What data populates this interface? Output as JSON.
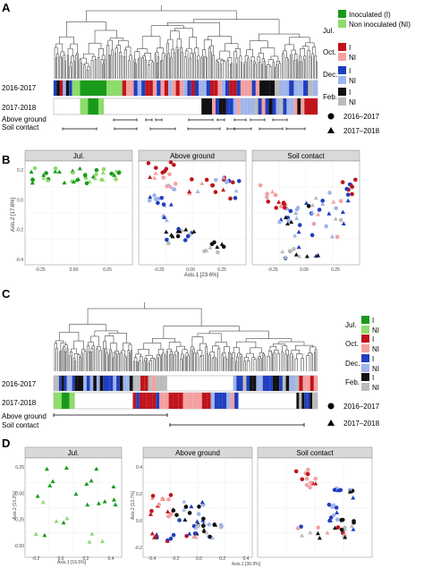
{
  "panels": {
    "A": {
      "label": "A",
      "row_labels": [
        "2016-2017",
        "2017-2018"
      ],
      "bar_labels": [
        "Above ground",
        "Soil contact"
      ],
      "legend": {
        "months": [
          {
            "label": "Jul.",
            "inoc_color": "#1a9a1a",
            "ni_color": "#8ddc6c",
            "inoc_text": "Inoculated (I)",
            "ni_text": "Non inoculated (NI)"
          },
          {
            "label": "Oct.",
            "inoc_color": "#c0141c",
            "ni_color": "#f4a0a0",
            "inoc_text": "I",
            "ni_text": "NI"
          },
          {
            "label": "Dec.",
            "inoc_color": "#1f3fbf",
            "ni_color": "#9fb4ea",
            "inoc_text": "I",
            "ni_text": "NI"
          },
          {
            "label": "Feb.",
            "inoc_color": "#111111",
            "ni_color": "#bbbbbb",
            "inoc_text": "I",
            "ni_text": "NI"
          }
        ],
        "years": [
          {
            "shape": "circle",
            "label": "2016–2017"
          },
          {
            "shape": "triangle",
            "label": "2017–2018"
          }
        ]
      }
    },
    "B": {
      "label": "B",
      "facets": [
        "Jul.",
        "Above ground",
        "Soil contact"
      ],
      "xlabel": "Axis.1 [23.6%]",
      "ylabel": "Axis.2 [17.6%]",
      "xticks": [
        "-0.25",
        "0.00",
        "0.25"
      ],
      "yticks": [
        "0.2",
        "0.0",
        "-0.2",
        "-0.4"
      ]
    },
    "C": {
      "label": "C",
      "row_labels": [
        "2016-2017",
        "2017-2018"
      ],
      "bar_labels": [
        "Above ground",
        "Soil contact"
      ],
      "legend": {
        "months": [
          {
            "label": "Jul.",
            "inoc_text": "I",
            "ni_text": "NI"
          },
          {
            "label": "Oct.",
            "inoc_text": "I",
            "ni_text": "NI"
          },
          {
            "label": "Dec.",
            "inoc_text": "I",
            "ni_text": "NI"
          },
          {
            "label": "Feb.",
            "inoc_text": "I",
            "ni_text": "NI"
          }
        ],
        "years": [
          {
            "shape": "circle",
            "label": "2016–2017"
          },
          {
            "shape": "triangle",
            "label": "2017–2018"
          }
        ]
      }
    },
    "D": {
      "label": "D",
      "facets": [
        "Jul.",
        "Above ground",
        "Soil contact"
      ],
      "jul_xlabel": "Axis.1 [16.5%]",
      "jul_ylabel": "Axis.2 [14.2%]",
      "jul_xticks": [
        "-0.2",
        "0.0",
        "0.2",
        "0.4"
      ],
      "jul_yticks": [
        "0.25",
        "0.00",
        "-0.25",
        "-0.50"
      ],
      "xlabel": "Axis.1 [30.9%]",
      "ylabel": "Axis.2 [13.7%]",
      "xticks": [
        "-0.4",
        "-0.2",
        "0.0",
        "0.2",
        "0.4"
      ],
      "yticks": [
        "0.4",
        "0.2",
        "0.0",
        "-0.2"
      ]
    }
  }
}
